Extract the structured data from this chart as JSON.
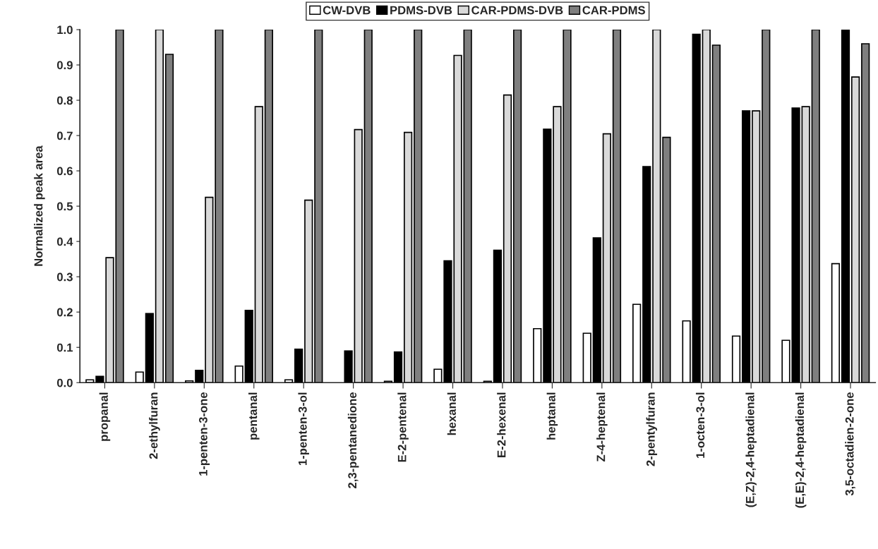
{
  "chart_data": {
    "type": "bar",
    "ylabel": "Normalized peak area",
    "categories": [
      "propanal",
      "2-ethylfuran",
      "1-penten-3-one",
      "pentanal",
      "1-penten-3-ol",
      "2,3-pentanedione",
      "E-2-pentenal",
      "hexanal",
      "E-2-hexenal",
      "heptanal",
      "Z-4-heptenal",
      "2-pentylfuran",
      "1-octen-3-ol",
      "(E,Z)-2,4-heptadienal",
      "(E,E)-2,4-heptadienal",
      "3,5-octadien-2-one"
    ],
    "series": [
      {
        "name": "CW-DVB",
        "color": "#ffffff",
        "values": [
          0.008,
          0.03,
          0.005,
          0.047,
          0.008,
          null,
          0.004,
          0.038,
          0.004,
          0.153,
          0.14,
          0.222,
          0.175,
          0.132,
          0.12,
          0.337
        ]
      },
      {
        "name": "PDMS-DVB",
        "color": "#000000",
        "values": [
          0.018,
          0.196,
          0.035,
          0.205,
          0.095,
          0.09,
          0.087,
          0.345,
          0.375,
          0.718,
          0.41,
          0.612,
          0.987,
          0.77,
          0.778,
          1.0
        ]
      },
      {
        "name": "CAR-PDMS-DVB",
        "color": "#d9d9d9",
        "values": [
          0.354,
          1.0,
          0.525,
          0.782,
          0.517,
          0.717,
          0.709,
          0.927,
          0.815,
          0.782,
          0.705,
          1.0,
          1.0,
          0.77,
          0.782,
          0.866
        ]
      },
      {
        "name": "CAR-PDMS",
        "color": "#7f7f7f",
        "values": [
          1.0,
          0.93,
          1.0,
          1.0,
          1.0,
          1.0,
          1.0,
          1.0,
          1.0,
          1.0,
          1.0,
          0.695,
          0.956,
          1.0,
          1.0,
          0.96
        ]
      }
    ],
    "ylim": [
      0,
      1
    ],
    "yticks": [
      {
        "value": 0,
        "label": "0.0"
      },
      {
        "value": 0.1,
        "label": "0.1"
      },
      {
        "value": 0.2,
        "label": "0.2"
      },
      {
        "value": 0.3,
        "label": "0.3"
      },
      {
        "value": 0.4,
        "label": "0.4"
      },
      {
        "value": 0.5,
        "label": "0.5"
      },
      {
        "value": 0.6,
        "label": "0.6"
      },
      {
        "value": 0.7,
        "label": "0.7"
      },
      {
        "value": 0.8,
        "label": "0.8"
      },
      {
        "value": 0.9,
        "label": "0.9"
      },
      {
        "value": 1.0,
        "label": "1.0"
      }
    ],
    "grid": false,
    "legend": "top"
  }
}
